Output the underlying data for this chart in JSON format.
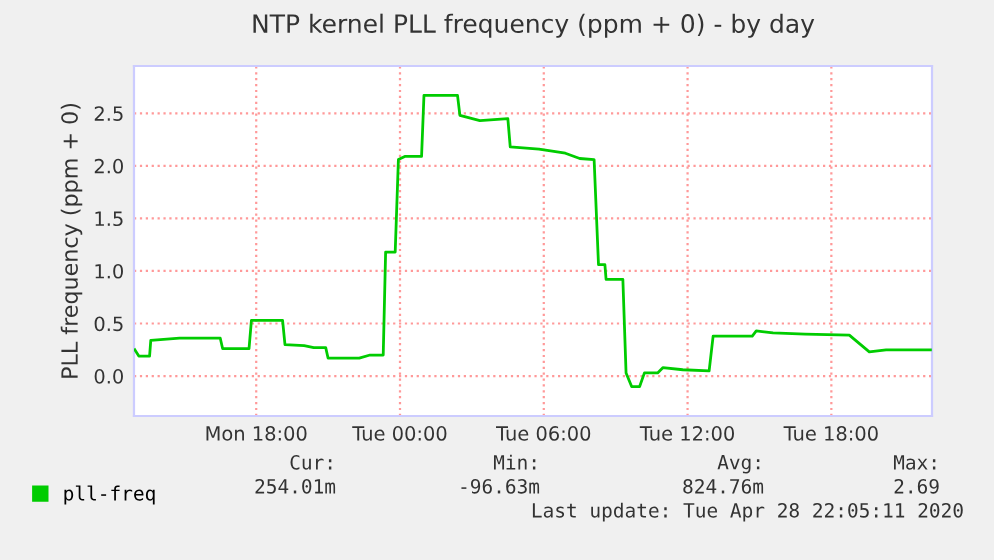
{
  "chart_data": {
    "type": "line",
    "title": "NTP kernel PLL frequency (ppm + 0) - by day",
    "ylabel": "PLL frequency (ppm + 0)",
    "x": [
      "2020-04-27T12:56",
      "2020-04-27T13:06",
      "2020-04-27T13:33",
      "2020-04-27T13:36",
      "2020-04-27T14:48",
      "2020-04-27T16:30",
      "2020-04-27T16:36",
      "2020-04-27T17:42",
      "2020-04-27T17:48",
      "2020-04-27T19:06",
      "2020-04-27T19:12",
      "2020-04-27T20:00",
      "2020-04-27T20:24",
      "2020-04-27T20:54",
      "2020-04-27T21:00",
      "2020-04-27T22:18",
      "2020-04-27T22:45",
      "2020-04-27T23:18",
      "2020-04-27T23:24",
      "2020-04-27T23:48",
      "2020-04-27T23:56",
      "2020-04-28T00:12",
      "2020-04-28T00:54",
      "2020-04-28T01:00",
      "2020-04-28T02:24",
      "2020-04-28T02:30",
      "2020-04-28T03:20",
      "2020-04-28T04:30",
      "2020-04-28T04:36",
      "2020-04-28T05:48",
      "2020-04-28T06:54",
      "2020-04-28T07:30",
      "2020-04-28T08:06",
      "2020-04-28T08:17",
      "2020-04-28T08:33",
      "2020-04-28T08:36",
      "2020-04-28T09:18",
      "2020-04-28T09:26",
      "2020-04-28T09:40",
      "2020-04-28T10:00",
      "2020-04-28T10:12",
      "2020-04-28T10:45",
      "2020-04-28T10:58",
      "2020-04-28T11:48",
      "2020-04-28T12:54",
      "2020-04-28T13:04",
      "2020-04-28T14:42",
      "2020-04-28T14:52",
      "2020-04-28T15:34",
      "2020-04-28T16:54",
      "2020-04-28T18:45",
      "2020-04-28T19:35",
      "2020-04-28T20:17",
      "2020-04-28T22:08"
    ],
    "series": [
      {
        "name": "pll-freq",
        "color": "#00cc00",
        "values": [
          0.25,
          0.19,
          0.19,
          0.34,
          0.36,
          0.36,
          0.26,
          0.26,
          0.53,
          0.53,
          0.3,
          0.29,
          0.27,
          0.27,
          0.17,
          0.17,
          0.2,
          0.2,
          1.18,
          1.18,
          2.06,
          2.09,
          2.09,
          2.67,
          2.67,
          2.48,
          2.43,
          2.45,
          2.18,
          2.16,
          2.12,
          2.07,
          2.06,
          1.06,
          1.06,
          0.92,
          0.92,
          0.03,
          -0.1,
          -0.1,
          0.03,
          0.03,
          0.08,
          0.06,
          0.05,
          0.38,
          0.38,
          0.43,
          0.41,
          0.4,
          0.39,
          0.23,
          0.25,
          0.25
        ]
      }
    ],
    "xlim": [
      "2020-04-27T12:54",
      "2020-04-28T22:12"
    ],
    "xticks": [
      {
        "value": "2020-04-27T18:00",
        "label": "Mon 18:00"
      },
      {
        "value": "2020-04-28T00:00",
        "label": "Tue 00:00"
      },
      {
        "value": "2020-04-28T06:00",
        "label": "Tue 06:00"
      },
      {
        "value": "2020-04-28T12:00",
        "label": "Tue 12:00"
      },
      {
        "value": "2020-04-28T18:00",
        "label": "Tue 18:00"
      }
    ],
    "ylim": [
      -0.38,
      2.95
    ],
    "yticks": [
      {
        "value": 0,
        "label": "0.0"
      },
      {
        "value": 0.5,
        "label": "0.5"
      },
      {
        "value": 1,
        "label": "1.0"
      },
      {
        "value": 1.5,
        "label": "1.5"
      },
      {
        "value": 2,
        "label": "2.0"
      },
      {
        "value": 2.5,
        "label": "2.5"
      }
    ],
    "grid": true,
    "legend": "bottom left",
    "marker": "none",
    "line_style": "solid",
    "annotations": [
      "Cur:",
      "Min:",
      "Avg:",
      "Max:",
      "254.01m",
      "-96.63m",
      "824.76m",
      "2.69",
      "Last update: Tue Apr 28 22:05:11 2020"
    ]
  }
}
